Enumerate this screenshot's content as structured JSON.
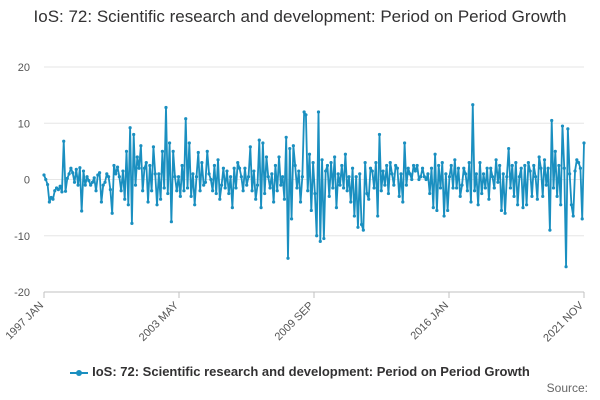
{
  "chart_data": {
    "type": "line",
    "title": "IoS: 72: Scientific research and development: Period on Period Growth",
    "xlabel": "",
    "ylabel": "",
    "ylim": [
      -20,
      20
    ],
    "yticks": [
      20,
      10,
      0,
      -10,
      -20
    ],
    "xticks": [
      "1997 JAN",
      "2003 MAY",
      "2009 SEP",
      "2016 JAN",
      "2021 NOV"
    ],
    "x_start": "1997 JAN",
    "x_end": "2021 NOV",
    "grid": true,
    "legend_position": "bottom",
    "series": [
      {
        "name": "IoS: 72: Scientific research and development: Period on Period Growth",
        "color": "#1a8fc0",
        "values": [
          0.8,
          0.0,
          -0.9,
          -4.0,
          -3.2,
          -3.5,
          -2.0,
          -1.5,
          -1.8,
          -1.2,
          -2.2,
          6.8,
          -2.1,
          0.2,
          1.0,
          2.0,
          1.2,
          -0.5,
          1.8,
          -1.0,
          2.1,
          -5.6,
          1.5,
          -1.0,
          0.5,
          -0.2,
          -1.0,
          -0.5,
          0.3,
          -2.0,
          0.8,
          1.2,
          -4.0,
          -1.0,
          -0.5,
          1.0,
          0.5,
          -1.8,
          -6.0,
          2.5,
          1.0,
          2.2,
          0.5,
          -2.0,
          1.5,
          -3.5,
          5.0,
          -4.5,
          9.2,
          -7.8,
          8.0,
          -1.0,
          4.0,
          2.0,
          6.0,
          -2.0,
          2.0,
          3.0,
          -4.0,
          2.5,
          -2.0,
          5.8,
          1.0,
          -4.5,
          1.0,
          -3.5,
          5.0,
          -1.5,
          12.8,
          -2.5,
          6.5,
          -7.5,
          5.0,
          0.5,
          -2.0,
          0.5,
          -3.0,
          2.5,
          -2.0,
          10.8,
          -1.5,
          6.5,
          -3.0,
          1.0,
          -4.5,
          0.5,
          4.8,
          -2.0,
          3.0,
          -1.0,
          -0.5,
          5.0,
          1.0,
          0.0,
          -2.0,
          2.5,
          -2.5,
          3.5,
          -3.5,
          -1.0,
          2.0,
          -1.5,
          1.5,
          -2.5,
          0.5,
          -5.0,
          2.0,
          -1.5,
          3.0,
          2.0,
          0.5,
          -2.0,
          2.0,
          -1.0,
          0.5,
          5.8,
          -2.0,
          1.5,
          -3.5,
          -1.0,
          7.0,
          -5.0,
          6.5,
          -2.5,
          4.0,
          0.5,
          -1.5,
          1.0,
          -4.0,
          2.5,
          -2.0,
          4.0,
          -1.0,
          0.5,
          -3.5,
          7.5,
          -14.0,
          5.5,
          -7.0,
          6.0,
          2.5,
          -1.5,
          1.5,
          -4.0,
          0.5,
          12.0,
          11.5,
          -2.0,
          4.5,
          -5.5,
          3.0,
          -2.5,
          -10.0,
          12.0,
          -11.0,
          3.5,
          -10.5,
          1.5,
          2.5,
          -3.0,
          3.0,
          -1.5,
          4.0,
          -5.0,
          1.0,
          -1.0,
          2.5,
          -1.5,
          4.5,
          -2.0,
          0.5,
          -4.0,
          2.0,
          -6.5,
          0.5,
          -8.5,
          1.0,
          -8.0,
          -9.0,
          3.0,
          -2.5,
          -3.5,
          2.0,
          1.5,
          -1.5,
          3.0,
          -6.5,
          8.0,
          -2.0,
          1.5,
          -1.0,
          2.5,
          -2.5,
          3.0,
          1.0,
          -1.0,
          2.5,
          2.0,
          -3.0,
          1.0,
          -4.0,
          6.5,
          -1.0,
          2.0,
          1.0,
          0.0,
          2.5,
          1.5,
          2.5,
          0.0,
          0.5,
          2.0,
          0.5,
          0.0,
          1.0,
          -2.5,
          2.0,
          -5.0,
          4.5,
          -5.5,
          2.5,
          -1.5,
          3.0,
          -6.5,
          1.0,
          -5.5,
          0.5,
          2.5,
          -1.5,
          3.5,
          -1.5,
          2.0,
          -3.0,
          -1.0,
          2.0,
          1.0,
          -2.0,
          3.0,
          -4.0,
          13.3,
          -2.0,
          1.0,
          -4.5,
          3.0,
          -2.5,
          1.0,
          -1.5,
          2.0,
          -3.5,
          2.0,
          0.5,
          -1.5,
          3.5,
          -0.5,
          2.5,
          -5.5,
          1.0,
          -6.0,
          0.5,
          5.5,
          -1.5,
          2.5,
          -3.0,
          3.0,
          -4.5,
          0.5,
          2.0,
          -5.0,
          2.5,
          -4.5,
          3.0,
          1.5,
          -3.0,
          2.5,
          0.5,
          -3.5,
          4.0,
          2.0,
          -3.0,
          3.5,
          -1.0,
          2.0,
          -9.0,
          10.5,
          -1.5,
          5.0,
          -3.0,
          2.5,
          -4.5,
          9.5,
          2.0,
          -15.5,
          9.0,
          1.0,
          -4.5,
          -6.5,
          1.5,
          3.5,
          3.0,
          2.0,
          -7.0,
          6.5
        ]
      }
    ],
    "colors": {
      "line": "#1a8fc0",
      "grid": "#e6e6e6",
      "axis": "#c0c0c0"
    }
  },
  "legend": {
    "label": "IoS: 72: Scientific research and development: Period on Period Growth"
  },
  "source": {
    "label": "Source:"
  }
}
